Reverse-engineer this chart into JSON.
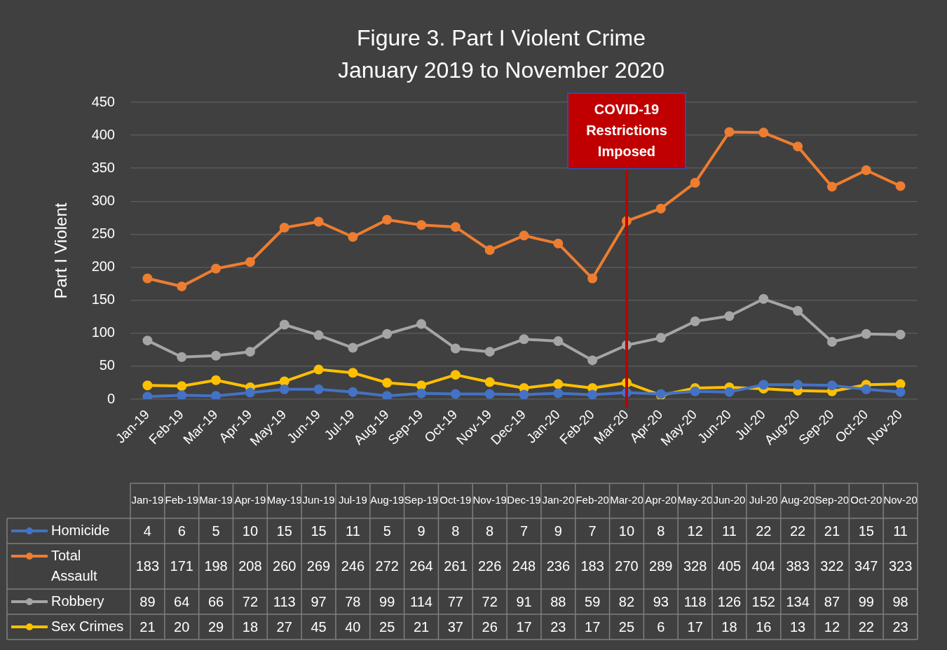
{
  "chart_data": {
    "type": "line",
    "title": "Figure 3. Part I Violent Crime\nJanuary 2019 to November 2020",
    "ylabel": "Part I Violent",
    "categories": [
      "Jan-19",
      "Feb-19",
      "Mar-19",
      "Apr-19",
      "May-19",
      "Jun-19",
      "Jul-19",
      "Aug-19",
      "Sep-19",
      "Oct-19",
      "Nov-19",
      "Dec-19",
      "Jan-20",
      "Feb-20",
      "Mar-20",
      "Apr-20",
      "May-20",
      "Jun-20",
      "Jul-20",
      "Aug-20",
      "Sep-20",
      "Oct-20",
      "Nov-20"
    ],
    "series": [
      {
        "name": "Homicide",
        "color": "#4472c4",
        "values": [
          4,
          6,
          5,
          10,
          15,
          15,
          11,
          5,
          9,
          8,
          8,
          7,
          9,
          7,
          10,
          8,
          12,
          11,
          22,
          22,
          21,
          15,
          11
        ]
      },
      {
        "name": "Total Assault",
        "color": "#ed7d31",
        "values": [
          183,
          171,
          198,
          208,
          260,
          269,
          246,
          272,
          264,
          261,
          226,
          248,
          236,
          183,
          270,
          289,
          328,
          405,
          404,
          383,
          322,
          347,
          323
        ]
      },
      {
        "name": "Robbery",
        "color": "#a5a5a5",
        "values": [
          89,
          64,
          66,
          72,
          113,
          97,
          78,
          99,
          114,
          77,
          72,
          91,
          88,
          59,
          82,
          93,
          118,
          126,
          152,
          134,
          87,
          99,
          98
        ]
      },
      {
        "name": "Sex Crimes",
        "color": "#ffc000",
        "values": [
          21,
          20,
          29,
          18,
          27,
          45,
          40,
          25,
          21,
          37,
          26,
          17,
          23,
          17,
          25,
          6,
          17,
          18,
          16,
          13,
          12,
          22,
          23
        ]
      }
    ],
    "ylim": [
      0,
      450
    ],
    "yticks": [
      0,
      50,
      100,
      150,
      200,
      250,
      300,
      350,
      400,
      450
    ],
    "grid": "y",
    "marker": "circle",
    "legend": "bottom",
    "data_labels": true,
    "ref_lines": [
      {
        "axis": "x",
        "value": "Mar-20",
        "label": "COVID-19 Restrictions Imposed",
        "color": "#c00000"
      }
    ]
  }
}
